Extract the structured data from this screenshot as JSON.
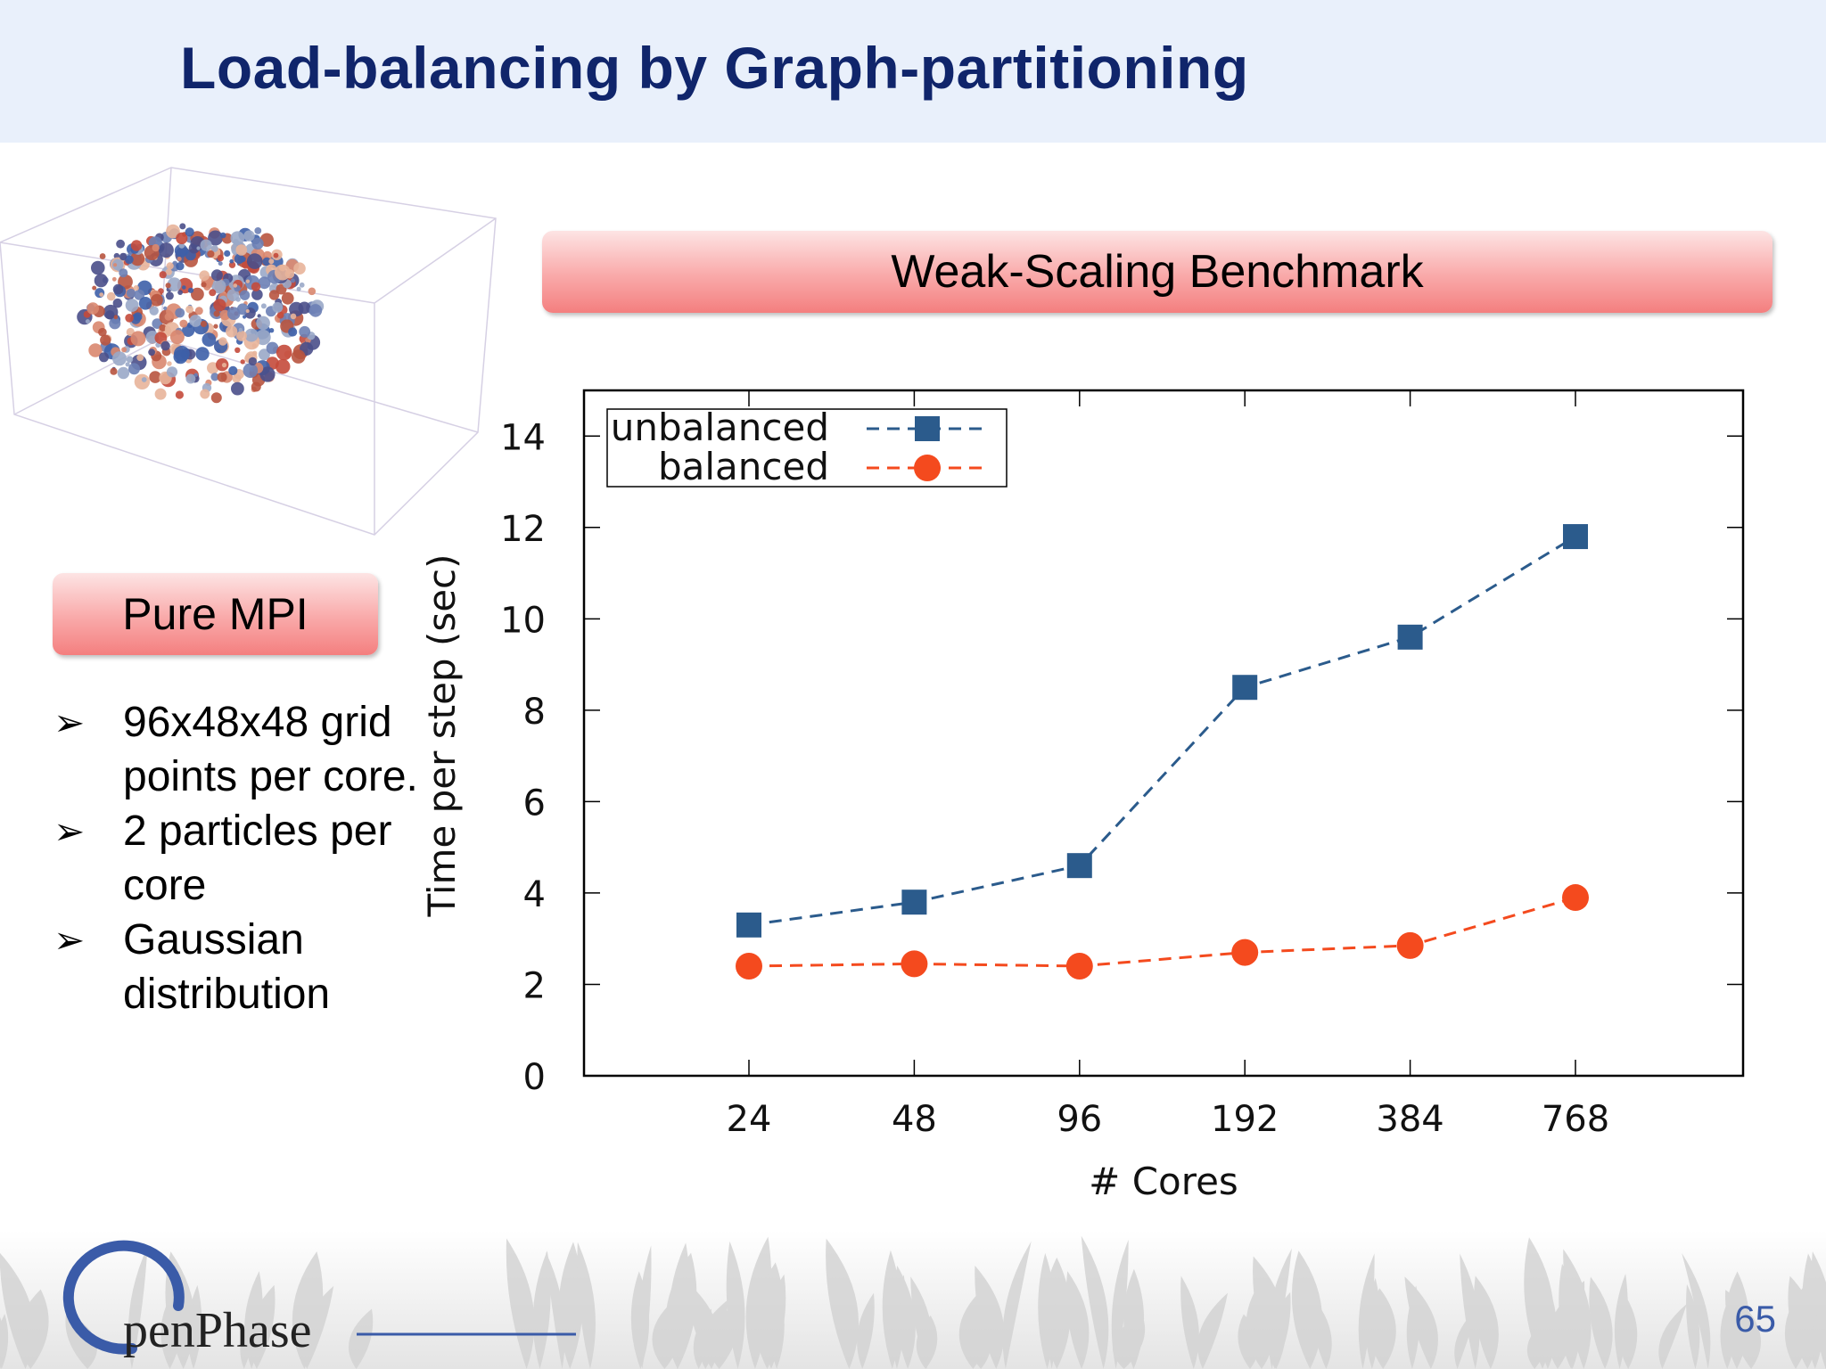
{
  "slide": {
    "title": "Load-balancing by Graph-partitioning",
    "benchmark_label": "Weak-Scaling Benchmark",
    "method_label": "Pure MPI",
    "bullets": [
      "96x48x48 grid points per core.",
      "2 particles per core",
      "Gaussian distribution"
    ],
    "bullet_marker": "➢",
    "page_number": "65",
    "logo_text": "penPhase",
    "colors": {
      "title": "#10256b",
      "header_bg": "#e9f0fb",
      "banner": "#f9a9a9",
      "logo": "#3a5ba8"
    }
  },
  "chart_data": {
    "type": "line",
    "categories": [
      "24",
      "48",
      "96",
      "192",
      "384",
      "768"
    ],
    "xlabel": "# Cores",
    "ylabel": "Time per step (sec)",
    "ylim": [
      0,
      15
    ],
    "yticks": [
      0,
      2,
      4,
      6,
      8,
      10,
      12,
      14
    ],
    "grid": false,
    "legend_position": "top-left",
    "series": [
      {
        "name": "unbalanced",
        "values": [
          3.3,
          3.8,
          4.6,
          8.5,
          9.6,
          11.8
        ],
        "color": "#2b5b8c",
        "marker": "square",
        "line": "dashed"
      },
      {
        "name": "balanced",
        "values": [
          2.4,
          2.45,
          2.4,
          2.7,
          2.85,
          3.9
        ],
        "color": "#f44a1e",
        "marker": "circle",
        "line": "dashed"
      }
    ]
  }
}
